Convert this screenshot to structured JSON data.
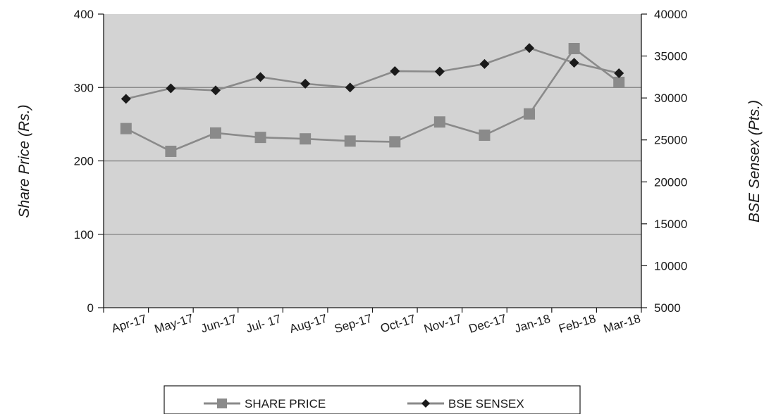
{
  "chart_data": {
    "type": "line",
    "categories": [
      "Apr-17",
      "May-17",
      "Jun-17",
      "Jul- 17",
      "Aug-17",
      "Sep-17",
      "Oct-17",
      "Nov-17",
      "Dec-17",
      "Jan-18",
      "Feb-18",
      "Mar-18"
    ],
    "series": [
      {
        "name": "SHARE PRICE",
        "axis": "left",
        "marker": "square",
        "color": "#8a8a8a",
        "values": [
          244,
          213,
          238,
          232,
          230,
          227,
          226,
          253,
          235,
          264,
          353,
          307
        ]
      },
      {
        "name": "BSE SENSEX",
        "axis": "right",
        "marker": "diamond",
        "color": "#8a8a8a",
        "marker_color": "#1a1a1a",
        "values": [
          29900,
          31150,
          30900,
          32500,
          31700,
          31250,
          33200,
          33150,
          34050,
          35950,
          34200,
          32950
        ]
      }
    ],
    "ylabel_left": "Share Price (Rs.)",
    "ylabel_right": "BSE Sensex (Pts.)",
    "ylim_left": [
      0,
      400
    ],
    "ylim_right": [
      5000,
      40000
    ],
    "yticks_left": [
      0,
      100,
      200,
      300,
      400
    ],
    "yticks_right": [
      5000,
      10000,
      15000,
      20000,
      25000,
      30000,
      35000,
      40000
    ],
    "grid": true,
    "legend_position": "bottom",
    "plot_background": "#d3d3d3"
  }
}
